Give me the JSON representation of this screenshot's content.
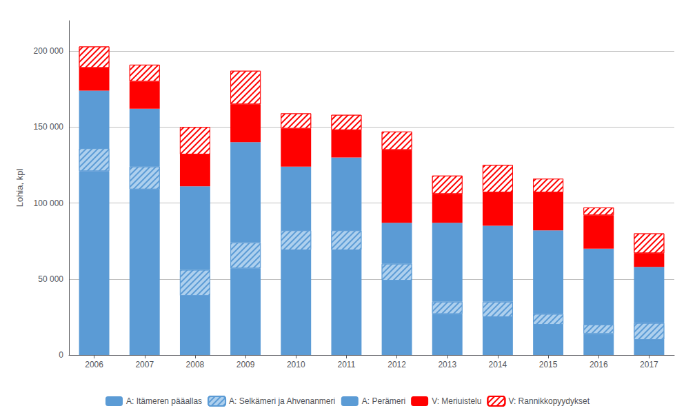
{
  "chart_data": {
    "type": "bar",
    "stacked": true,
    "ylabel": "Lohia, kpl",
    "categories": [
      "2006",
      "2007",
      "2008",
      "2009",
      "2010",
      "2011",
      "2012",
      "2013",
      "2014",
      "2015",
      "2016",
      "2017"
    ],
    "series": [
      {
        "name": "A: Itämeren pääallas",
        "color": "#5B9BD5",
        "values": [
          121000,
          109000,
          39000,
          57000,
          69000,
          69000,
          49000,
          27000,
          25000,
          20000,
          14000,
          10000
        ]
      },
      {
        "name": "A: Selkämeri ja Ahvenanmeri",
        "color": "#AED0EE",
        "values": [
          15000,
          15000,
          17000,
          17000,
          13000,
          13000,
          11000,
          8000,
          10000,
          7000,
          6000,
          11000
        ]
      },
      {
        "name": "A: Perämeri",
        "color": "#5B9BD5",
        "values": [
          38000,
          38000,
          55000,
          66000,
          42000,
          48000,
          27000,
          52000,
          50000,
          55000,
          50000,
          37000
        ]
      },
      {
        "name": "V: Meriuistelu",
        "color": "#FF0000",
        "values": [
          15000,
          18000,
          21000,
          25000,
          25000,
          18000,
          48000,
          19000,
          22000,
          25000,
          22000,
          9000
        ]
      },
      {
        "name": "V: Rannikkopyydykset",
        "color": "#FFFFFF",
        "values": [
          14000,
          11000,
          18000,
          22000,
          10000,
          10000,
          12000,
          12000,
          18000,
          9000,
          5000,
          13000
        ]
      }
    ],
    "ylim": [
      0,
      220000
    ],
    "yticks": [
      {
        "value": 0,
        "label": "0"
      },
      {
        "value": 50000,
        "label": "50 000"
      },
      {
        "value": 100000,
        "label": "100 000"
      },
      {
        "value": 150000,
        "label": "150 000"
      },
      {
        "value": 200000,
        "label": "200 000"
      }
    ],
    "grid": true,
    "legend": "bottom"
  }
}
